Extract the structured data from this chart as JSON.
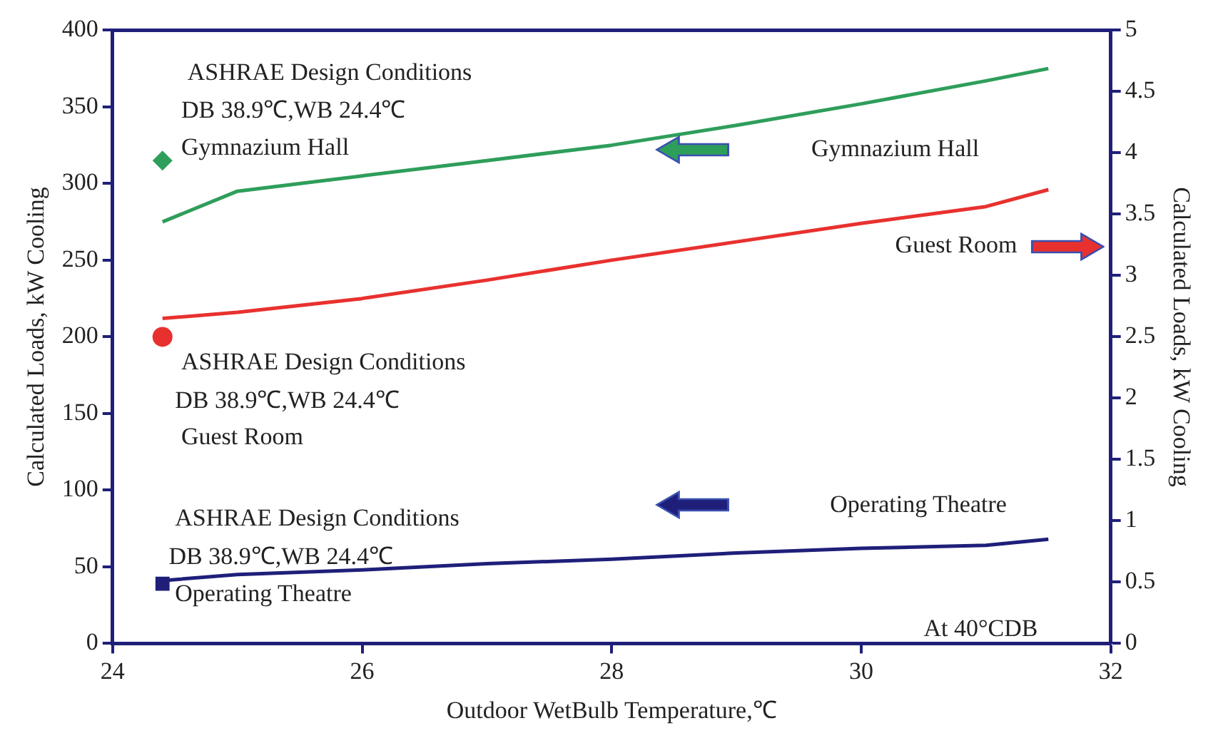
{
  "chart_data": {
    "type": "line",
    "xlabel": "Outdoor WetBulb Temperature,℃",
    "ylabel": "Calculated Loads, kW Cooling",
    "y2label": "Calculated Loads, kW Cooling",
    "xlim": [
      24,
      32
    ],
    "xticks": [
      24,
      26,
      28,
      30,
      32
    ],
    "ylim": [
      0,
      400
    ],
    "yticks": [
      0,
      50,
      100,
      150,
      200,
      250,
      300,
      350,
      400
    ],
    "y2lim": [
      0,
      5
    ],
    "y2ticks": [
      0,
      0.5,
      1,
      1.5,
      2,
      2.5,
      3,
      3.5,
      4,
      4.5,
      5
    ],
    "grid": false,
    "series": [
      {
        "name": "Gymnazium Hall",
        "marker": "none",
        "color": "#2e9e5b",
        "x": [
          24.4,
          25,
          26,
          27,
          28,
          29,
          30,
          31,
          31.5
        ],
        "values": [
          275,
          295,
          305,
          315,
          325,
          338,
          352,
          367,
          375
        ]
      },
      {
        "name": "Guest Room",
        "marker": "none",
        "color": "#e8312f",
        "x": [
          24.4,
          25,
          26,
          27,
          28,
          29,
          30,
          31,
          31.5
        ],
        "values": [
          212,
          216,
          225,
          237,
          250,
          262,
          274,
          285,
          296
        ]
      },
      {
        "name": "Operating Theatre",
        "marker": "none",
        "color": "#1f1f7a",
        "x": [
          24.4,
          25,
          26,
          27,
          28,
          29,
          30,
          31,
          31.5
        ],
        "values": [
          41,
          45,
          48,
          52,
          55,
          59,
          62,
          64,
          68
        ]
      },
      {
        "type": "scatter",
        "marker": "diamond",
        "color": "#2e9e5b",
        "x": [
          24.4
        ],
        "values": [
          315
        ]
      },
      {
        "type": "scatter",
        "marker": "circle",
        "color": "#e8312f",
        "x": [
          24.4
        ],
        "values": [
          200
        ]
      },
      {
        "type": "scatter",
        "marker": "square",
        "color": "#1f1f7a",
        "x": [
          24.4
        ],
        "values": [
          39
        ]
      }
    ],
    "annotations": [
      "ASHRAE Design Conditions",
      "DB 38.9℃,WB 24.4℃",
      "Gymnazium Hall",
      "ASHRAE Design Conditions",
      "DB 38.9℃,WB 24.4℃",
      "Guest Room",
      "ASHRAE Design Conditions",
      "DB 38.9℃,WB 24.4℃",
      "Operating Theatre",
      "At 40°CDB"
    ]
  }
}
